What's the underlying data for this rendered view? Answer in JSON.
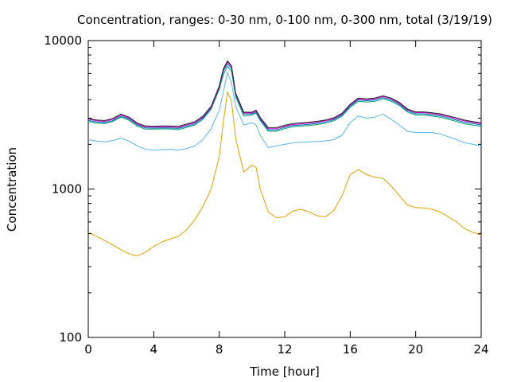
{
  "chart_data": {
    "type": "line",
    "title": "Concentration, ranges: 0-30 nm, 0-100 nm, 0-300 nm, total (3/19/19)",
    "xlabel": "Time [hour]",
    "ylabel": "Concentration",
    "xlim": [
      0,
      24
    ],
    "ylim": [
      100,
      10000
    ],
    "yscale": "log",
    "grid": false,
    "legend": "none",
    "xticks": [
      0,
      4,
      8,
      12,
      16,
      20,
      24
    ],
    "yticks": [
      100,
      1000,
      10000
    ],
    "xtick_labels": [
      "0",
      "4",
      "8",
      "12",
      "16",
      "20",
      "24"
    ],
    "ytick_labels": [
      "100",
      "1000",
      "10000"
    ],
    "x": [
      0,
      0.5,
      1,
      1.5,
      2,
      2.5,
      3,
      3.5,
      4,
      4.5,
      5,
      5.5,
      6,
      6.5,
      7,
      7.5,
      8,
      8.25,
      8.5,
      8.75,
      9,
      9.5,
      10,
      10.25,
      10.5,
      11,
      11.5,
      12,
      12.5,
      13,
      13.5,
      14,
      14.5,
      15,
      15.5,
      16,
      16.5,
      17,
      17.5,
      18,
      18.5,
      19,
      19.5,
      20,
      20.5,
      21,
      21.5,
      22,
      22.5,
      23,
      23.5,
      24
    ],
    "series": [
      {
        "color": "#e69f00",
        "values": [
          510,
          480,
          450,
          420,
          390,
          365,
          355,
          375,
          410,
          440,
          460,
          480,
          530,
          620,
          760,
          1000,
          1650,
          2800,
          4500,
          3900,
          2200,
          1300,
          1450,
          1400,
          1000,
          700,
          640,
          650,
          710,
          730,
          700,
          660,
          650,
          720,
          900,
          1250,
          1350,
          1250,
          1200,
          1180,
          1050,
          900,
          780,
          750,
          745,
          730,
          700,
          650,
          600,
          540,
          510,
          490
        ]
      },
      {
        "color": "#56b4e9",
        "values": [
          2150,
          2100,
          2080,
          2120,
          2200,
          2100,
          1950,
          1850,
          1830,
          1840,
          1850,
          1830,
          1870,
          1950,
          2150,
          2550,
          3400,
          4500,
          6100,
          5200,
          3600,
          2700,
          2800,
          2700,
          2300,
          1900,
          1950,
          2000,
          2050,
          2070,
          2080,
          2090,
          2110,
          2150,
          2300,
          2800,
          3100,
          3000,
          3050,
          3200,
          2950,
          2700,
          2450,
          2400,
          2400,
          2400,
          2350,
          2250,
          2150,
          2050,
          2000,
          1950
        ]
      },
      {
        "color": "#009e73",
        "values": [
          2850,
          2780,
          2760,
          2850,
          3050,
          2900,
          2650,
          2530,
          2530,
          2540,
          2540,
          2510,
          2600,
          2700,
          2950,
          3450,
          4700,
          5900,
          6700,
          6200,
          4200,
          3100,
          3150,
          3250,
          2900,
          2450,
          2450,
          2550,
          2630,
          2650,
          2680,
          2720,
          2780,
          2880,
          3100,
          3550,
          3900,
          3850,
          3900,
          4050,
          3900,
          3650,
          3300,
          3150,
          3150,
          3100,
          3050,
          2950,
          2850,
          2750,
          2700,
          2650
        ]
      },
      {
        "color": "#0072b2",
        "values": [
          2900,
          2830,
          2800,
          2890,
          3100,
          2950,
          2700,
          2580,
          2570,
          2580,
          2580,
          2560,
          2650,
          2750,
          3000,
          3500,
          4800,
          6200,
          7000,
          6500,
          4300,
          3200,
          3200,
          3300,
          2950,
          2500,
          2500,
          2600,
          2680,
          2700,
          2730,
          2770,
          2830,
          2930,
          3150,
          3620,
          3980,
          3930,
          3980,
          4130,
          3980,
          3720,
          3360,
          3210,
          3210,
          3160,
          3110,
          3010,
          2910,
          2810,
          2760,
          2700
        ]
      },
      {
        "color": "#cc00cc",
        "values": [
          2960,
          2880,
          2850,
          2950,
          3160,
          3000,
          2740,
          2620,
          2610,
          2620,
          2620,
          2600,
          2700,
          2800,
          3050,
          3560,
          4900,
          6350,
          7200,
          6650,
          4380,
          3250,
          3250,
          3360,
          3000,
          2550,
          2550,
          2650,
          2720,
          2750,
          2780,
          2820,
          2880,
          2980,
          3200,
          3680,
          4050,
          4000,
          4050,
          4200,
          4050,
          3780,
          3420,
          3270,
          3270,
          3220,
          3170,
          3070,
          2970,
          2870,
          2810,
          2750
        ]
      },
      {
        "color": "#222222",
        "values": [
          3000,
          2920,
          2890,
          2990,
          3200,
          3040,
          2780,
          2660,
          2650,
          2660,
          2660,
          2640,
          2740,
          2840,
          3090,
          3600,
          4950,
          6450,
          7300,
          6750,
          4430,
          3290,
          3290,
          3400,
          3040,
          2590,
          2590,
          2690,
          2760,
          2790,
          2820,
          2860,
          2920,
          3020,
          3240,
          3720,
          4100,
          4050,
          4100,
          4250,
          4100,
          3830,
          3460,
          3310,
          3310,
          3260,
          3210,
          3110,
          3010,
          2910,
          2850,
          2790
        ]
      }
    ]
  }
}
